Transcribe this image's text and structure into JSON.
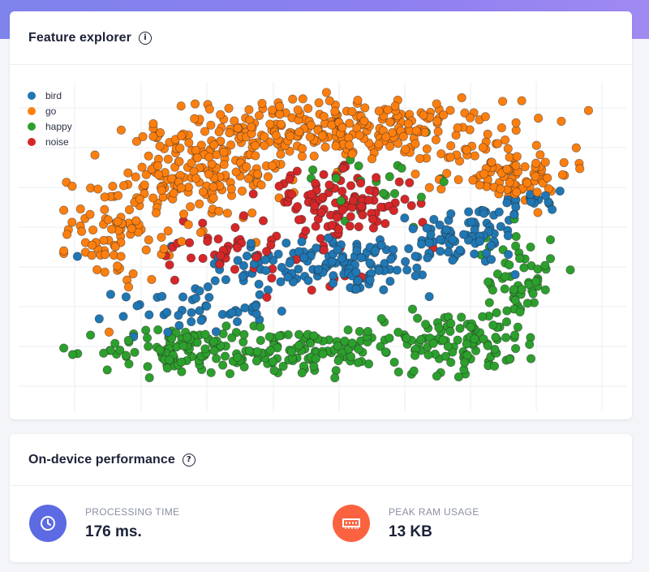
{
  "feature_explorer": {
    "title": "Feature explorer",
    "info_icon": "info-circle-icon",
    "legend": [
      {
        "label": "bird",
        "color": "#1f77b4"
      },
      {
        "label": "go",
        "color": "#ff7f0e"
      },
      {
        "label": "happy",
        "color": "#2ca02c"
      },
      {
        "label": "noise",
        "color": "#d62728"
      }
    ]
  },
  "chart_data": {
    "type": "scatter",
    "title": "",
    "xlabel": "",
    "ylabel": "",
    "grid": true,
    "legend_position": "top-left",
    "xlim": [
      0,
      100
    ],
    "ylim": [
      0,
      100
    ],
    "series": [
      {
        "name": "bird",
        "color": "#1f77b4",
        "clusters": [
          {
            "cx": 52,
            "cy": 42,
            "sx": 12,
            "sy": 5,
            "n": 140
          },
          {
            "cx": 77,
            "cy": 52,
            "sx": 5,
            "sy": 5,
            "n": 70
          },
          {
            "cx": 25,
            "cy": 27,
            "sx": 7,
            "sy": 4,
            "n": 50
          },
          {
            "cx": 89,
            "cy": 63,
            "sx": 3,
            "sy": 3,
            "n": 18
          }
        ]
      },
      {
        "name": "go",
        "color": "#ff7f0e",
        "clusters": [
          {
            "cx": 52,
            "cy": 86,
            "sx": 16,
            "sy": 5,
            "n": 300
          },
          {
            "cx": 12,
            "cy": 54,
            "sx": 5,
            "sy": 9,
            "n": 90
          },
          {
            "cx": 26,
            "cy": 70,
            "sx": 8,
            "sy": 7,
            "n": 140
          },
          {
            "cx": 84,
            "cy": 72,
            "sx": 6,
            "sy": 5,
            "n": 90
          }
        ]
      },
      {
        "name": "happy",
        "color": "#2ca02c",
        "clusters": [
          {
            "cx": 22,
            "cy": 13,
            "sx": 7,
            "sy": 4,
            "n": 90
          },
          {
            "cx": 42,
            "cy": 13,
            "sx": 9,
            "sy": 4,
            "n": 100
          },
          {
            "cx": 72,
            "cy": 16,
            "sx": 10,
            "sy": 5,
            "n": 130
          },
          {
            "cx": 86,
            "cy": 36,
            "sx": 3,
            "sy": 9,
            "n": 60
          },
          {
            "cx": 60,
            "cy": 70,
            "sx": 8,
            "sy": 6,
            "n": 25
          }
        ]
      },
      {
        "name": "noise",
        "color": "#d62728",
        "clusters": [
          {
            "cx": 52,
            "cy": 62,
            "sx": 7,
            "sy": 5,
            "n": 110
          },
          {
            "cx": 30,
            "cy": 47,
            "sx": 6,
            "sy": 6,
            "n": 30
          },
          {
            "cx": 45,
            "cy": 45,
            "sx": 10,
            "sy": 8,
            "n": 25
          }
        ]
      }
    ]
  },
  "performance": {
    "title": "On-device performance",
    "help_icon": "question-circle-icon",
    "metrics": [
      {
        "label": "PROCESSING TIME",
        "value": "176 ms.",
        "icon": "clock-icon",
        "color": "#5c6ae3"
      },
      {
        "label": "PEAK RAM USAGE",
        "value": "13 KB",
        "icon": "ram-chip-icon",
        "color": "#fb6340"
      }
    ]
  }
}
